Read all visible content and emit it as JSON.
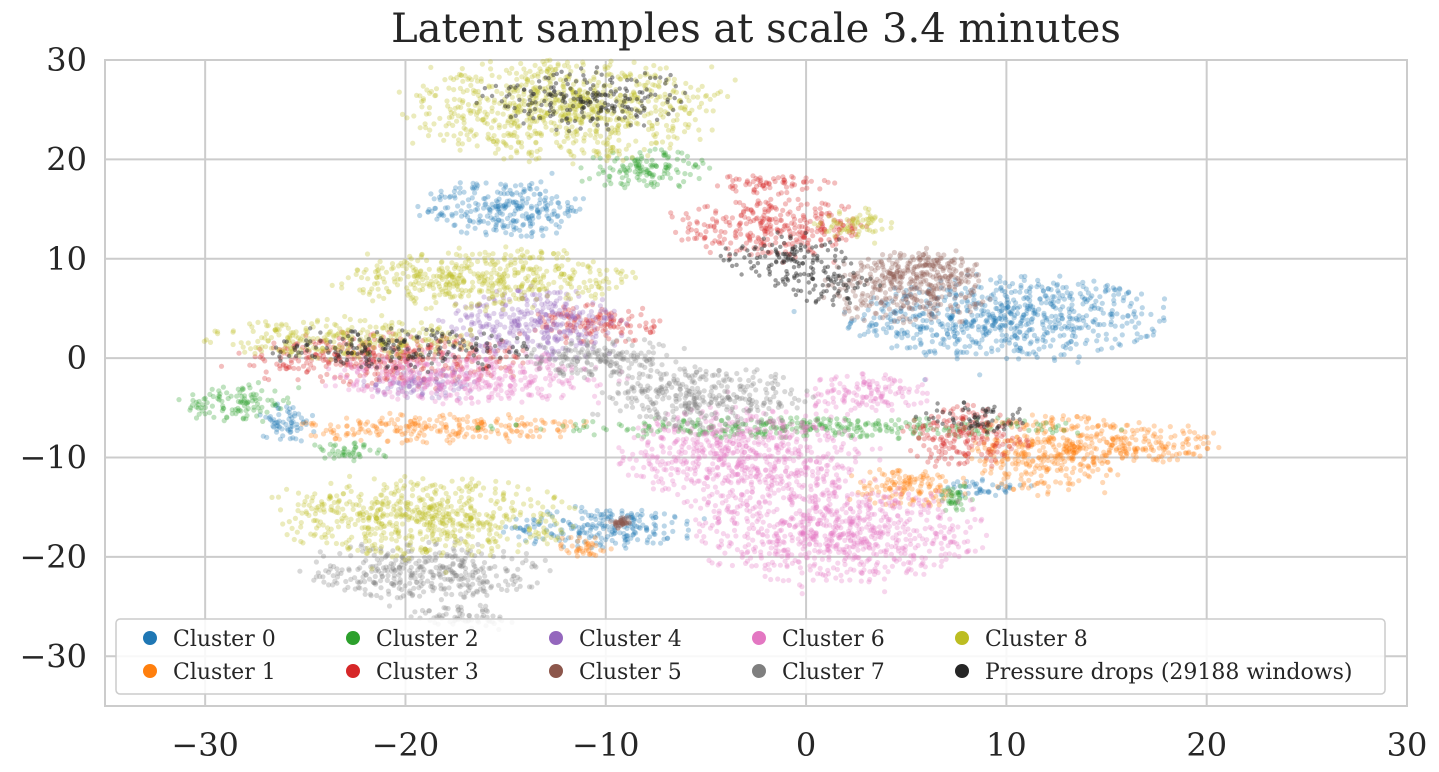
{
  "chart_data": {
    "type": "scatter",
    "title": "Latent samples at scale 3.4 minutes",
    "xlabel": "",
    "ylabel": "",
    "xlim": [
      -35,
      30
    ],
    "ylim": [
      -35,
      30
    ],
    "x_ticks": [
      -30,
      -20,
      -10,
      0,
      10,
      20,
      30
    ],
    "y_ticks": [
      30,
      20,
      10,
      0,
      -10,
      -20,
      -30
    ],
    "x_tick_labels": [
      "−30",
      "−20",
      "−10",
      "0",
      "10",
      "20",
      "30"
    ],
    "y_tick_labels": [
      "30",
      "20",
      "10",
      "0",
      "−10",
      "−20",
      "−30"
    ],
    "grid": true,
    "legend_position": "lower-left",
    "legend_columns": 5,
    "series": [
      {
        "name": "Cluster 0",
        "color": "#1f77b4",
        "regions": [
          {
            "cx": 10,
            "cy": 4,
            "rx": 7.5,
            "ry": 4.2
          },
          {
            "cx": -26,
            "cy": -6.5,
            "rx": 1.5,
            "ry": 2
          },
          {
            "cx": -15,
            "cy": 15,
            "rx": 4,
            "ry": 3
          },
          {
            "cx": -10,
            "cy": -17,
            "rx": 5,
            "ry": 2
          },
          {
            "cx": 9,
            "cy": -13,
            "rx": 2,
            "ry": 1
          }
        ]
      },
      {
        "name": "Cluster 1",
        "color": "#ff7f0e",
        "regions": [
          {
            "cx": 12,
            "cy": -9.5,
            "rx": 4,
            "ry": 4
          },
          {
            "cx": 16.5,
            "cy": -8.5,
            "rx": 4,
            "ry": 2
          },
          {
            "cx": -18,
            "cy": -7,
            "rx": 7,
            "ry": 1.5
          },
          {
            "cx": 5,
            "cy": -13,
            "rx": 3,
            "ry": 2
          },
          {
            "cx": -11,
            "cy": -19,
            "rx": 1.5,
            "ry": 1.2
          }
        ]
      },
      {
        "name": "Cluster 2",
        "color": "#2ca02c",
        "regions": [
          {
            "cx": -28.5,
            "cy": -4.5,
            "rx": 2.5,
            "ry": 2
          },
          {
            "cx": -23,
            "cy": -9.5,
            "rx": 2,
            "ry": 1
          },
          {
            "cx": -8,
            "cy": 19,
            "rx": 3,
            "ry": 2
          },
          {
            "cx": 7.5,
            "cy": -14,
            "rx": 1,
            "ry": 1.5
          },
          {
            "cx": 0,
            "cy": -7,
            "rx": 15,
            "ry": 1
          }
        ]
      },
      {
        "name": "Cluster 3",
        "color": "#d62728",
        "regions": [
          {
            "cx": -1.5,
            "cy": 13,
            "rx": 5,
            "ry": 2.8
          },
          {
            "cx": -21,
            "cy": 0,
            "rx": 7,
            "ry": 2.5
          },
          {
            "cx": -10.5,
            "cy": 3.5,
            "rx": 3,
            "ry": 2
          },
          {
            "cx": 8,
            "cy": -8,
            "rx": 3,
            "ry": 3
          },
          {
            "cx": -2,
            "cy": 17.5,
            "rx": 3,
            "ry": 1
          }
        ]
      },
      {
        "name": "Cluster 4",
        "color": "#9467bd",
        "regions": [
          {
            "cx": -13.5,
            "cy": 3.5,
            "rx": 4.5,
            "ry": 3.5
          },
          {
            "cx": -19,
            "cy": -2.5,
            "rx": 3,
            "ry": 1.5
          }
        ]
      },
      {
        "name": "Cluster 5",
        "color": "#8c564b",
        "regions": [
          {
            "cx": 5,
            "cy": 7,
            "rx": 4,
            "ry": 3.5
          },
          {
            "cx": 6,
            "cy": 9,
            "rx": 2.5,
            "ry": 2
          },
          {
            "cx": -9.2,
            "cy": -16.5,
            "rx": 0.5,
            "ry": 0.6
          }
        ]
      },
      {
        "name": "Cluster 6",
        "color": "#e377c2",
        "regions": [
          {
            "cx": 1.5,
            "cy": -17.5,
            "rx": 7,
            "ry": 5
          },
          {
            "cx": -3,
            "cy": -10,
            "rx": 6,
            "ry": 5
          },
          {
            "cx": -17,
            "cy": -2,
            "rx": 7,
            "ry": 2.5
          },
          {
            "cx": 3,
            "cy": -3.5,
            "rx": 3,
            "ry": 2
          }
        ]
      },
      {
        "name": "Cluster 7",
        "color": "#7f7f7f",
        "regions": [
          {
            "cx": -19,
            "cy": -21.5,
            "rx": 5.5,
            "ry": 3
          },
          {
            "cx": -17,
            "cy": -26,
            "rx": 2.5,
            "ry": 1.2
          },
          {
            "cx": -10,
            "cy": 0,
            "rx": 4,
            "ry": 2
          },
          {
            "cx": -5,
            "cy": -4,
            "rx": 5,
            "ry": 3
          }
        ]
      },
      {
        "name": "Cluster 8",
        "color": "#bcbd22",
        "regions": [
          {
            "cx": -12,
            "cy": 25,
            "rx": 7.5,
            "ry": 5
          },
          {
            "cx": -23,
            "cy": 2,
            "rx": 6.5,
            "ry": 2
          },
          {
            "cx": -16,
            "cy": 8,
            "rx": 7,
            "ry": 3
          },
          {
            "cx": -19,
            "cy": -16,
            "rx": 7,
            "ry": 4
          },
          {
            "cx": 2.5,
            "cy": 13.5,
            "rx": 2,
            "ry": 1.5
          }
        ]
      },
      {
        "name": "Pressure drops (29188 windows)",
        "color": "#262626",
        "regions": [
          {
            "cx": 1,
            "cy": 7.5,
            "rx": 2.5,
            "ry": 2
          },
          {
            "cx": -1,
            "cy": 10,
            "rx": 3.5,
            "ry": 2.5
          },
          {
            "cx": -20,
            "cy": 1,
            "rx": 7,
            "ry": 2
          },
          {
            "cx": -11,
            "cy": 26,
            "rx": 5,
            "ry": 3
          },
          {
            "cx": 8,
            "cy": -6,
            "rx": 3,
            "ry": 1.5
          }
        ]
      }
    ]
  }
}
